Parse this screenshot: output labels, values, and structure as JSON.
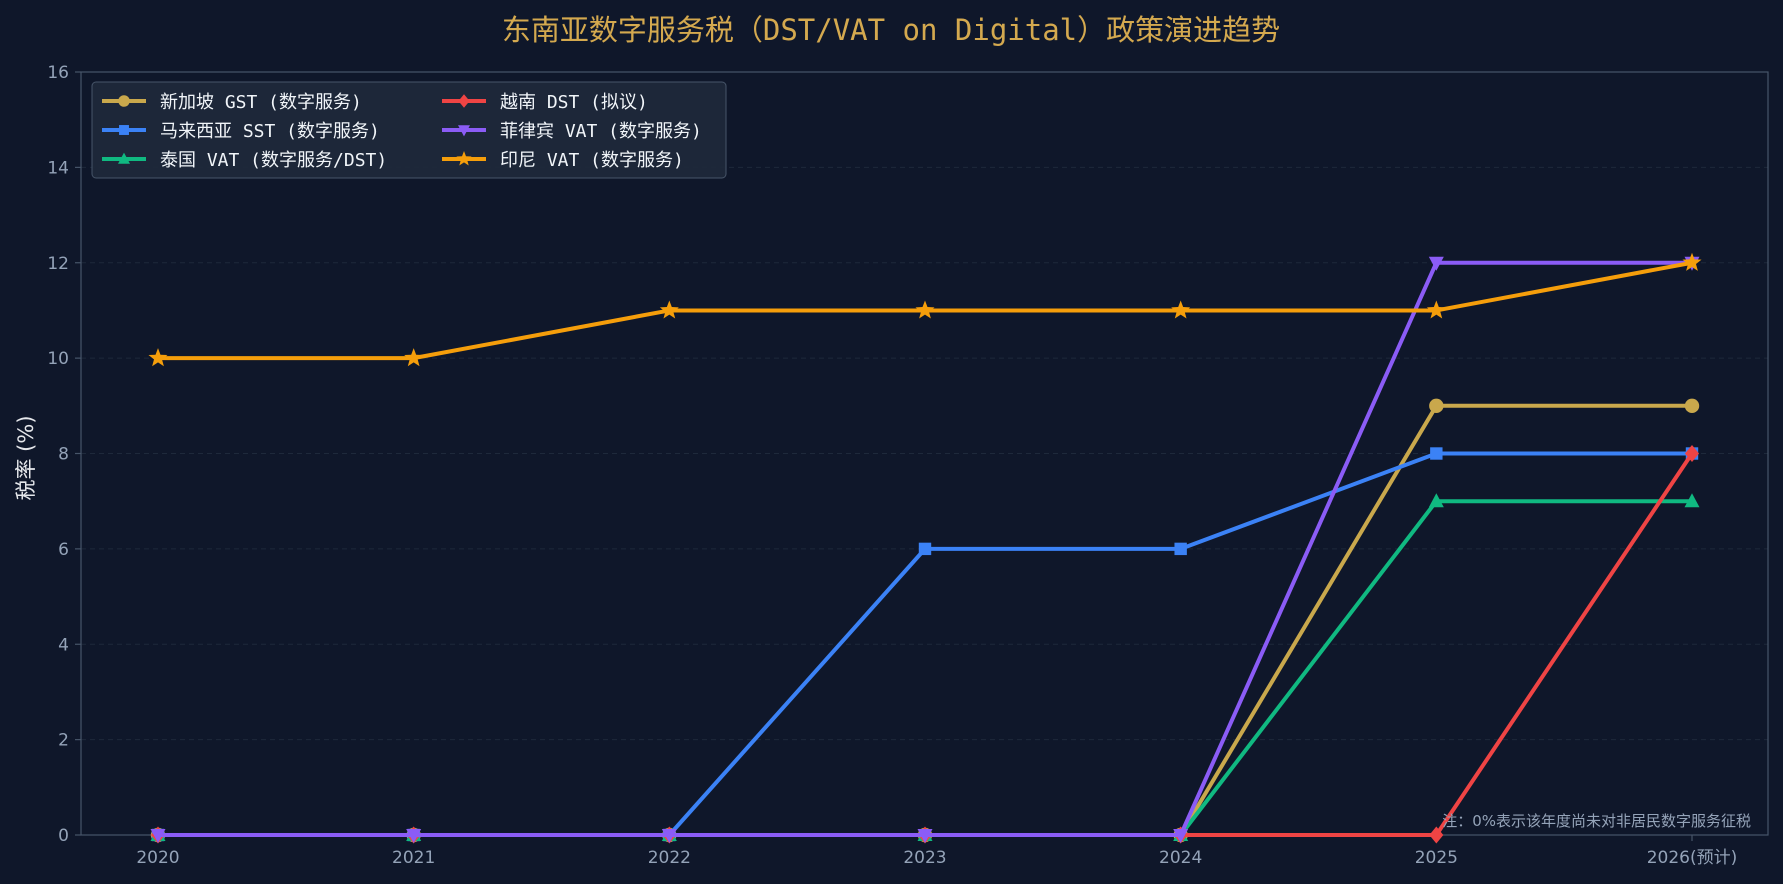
{
  "chart_data": {
    "type": "line",
    "title": "东南亚数字服务税（DST/VAT on Digital）政策演进趋势",
    "xlabel": "",
    "ylabel": "税率 (%)",
    "categories": [
      "2020",
      "2021",
      "2022",
      "2023",
      "2024",
      "2025",
      "2026(预计)"
    ],
    "ylim": [
      0,
      16
    ],
    "yticks": [
      0,
      2,
      4,
      6,
      8,
      10,
      12,
      14,
      16
    ],
    "grid": "horizontal dashed",
    "legend_position": "top-left",
    "legend_columns": 2,
    "series": [
      {
        "name": "新加坡 GST (数字服务)",
        "color": "#c9a84c",
        "marker": "circle",
        "values": [
          0,
          0,
          0,
          0,
          0,
          9,
          9
        ]
      },
      {
        "name": "马来西亚 SST (数字服务)",
        "color": "#3b82f6",
        "marker": "square",
        "values": [
          0,
          0,
          0,
          6,
          6,
          8,
          8
        ]
      },
      {
        "name": "泰国 VAT (数字服务/DST)",
        "color": "#10b981",
        "marker": "triangle-up",
        "values": [
          0,
          0,
          0,
          0,
          0,
          7,
          7
        ]
      },
      {
        "name": "越南 DST (拟议)",
        "color": "#ef4444",
        "marker": "diamond",
        "values": [
          0,
          0,
          0,
          0,
          0,
          0,
          8
        ]
      },
      {
        "name": "菲律宾 VAT (数字服务)",
        "color": "#8b5cf6",
        "marker": "triangle-down",
        "values": [
          0,
          0,
          0,
          0,
          0,
          12,
          12
        ]
      },
      {
        "name": "印尼 VAT (数字服务)",
        "color": "#f59e0b",
        "marker": "star",
        "values": [
          10,
          10,
          11,
          11,
          11,
          11,
          12
        ]
      }
    ],
    "note": "注：0%表示该年度尚未对非居民数字服务征税"
  },
  "colors": {
    "background": "#0f172a",
    "title": "#d4a94f",
    "axis": "#475569",
    "grid": "#1e293b",
    "tick": "#94a3b8",
    "legend_bg": "#1e293b",
    "legend_border": "#475569"
  }
}
